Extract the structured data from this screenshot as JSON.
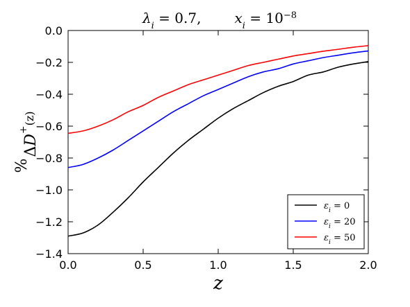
{
  "chart_data": {
    "type": "line",
    "title": "λ_i = 0.7,      x_i = 10^−8",
    "title_parts": {
      "lambda": "λ",
      "lambda_sub": "i",
      "lambda_value": " = 0.7,",
      "x": "x",
      "x_sub": "i",
      "x_value": " = 10",
      "x_exp": "−8"
    },
    "xlabel": "z",
    "ylabel": "%ΔD₊(z)",
    "ylabel_parts": {
      "prefix": "%",
      "delta": "Δ",
      "D": "D",
      "sub": "+",
      "arg": "(z)"
    },
    "xlim": [
      0.0,
      2.0
    ],
    "ylim": [
      -1.4,
      0.0
    ],
    "xticks": [
      "0.0",
      "0.5",
      "1.0",
      "1.5",
      "2.0"
    ],
    "yticks": [
      "0.0",
      "−0.2",
      "−0.4",
      "−0.6",
      "−0.8",
      "−1.0",
      "−1.2",
      "−1.4"
    ],
    "legend_position": "lower-right",
    "grid": false,
    "x": [
      0.0,
      0.1,
      0.2,
      0.3,
      0.4,
      0.5,
      0.6,
      0.7,
      0.8,
      0.9,
      1.0,
      1.1,
      1.2,
      1.3,
      1.4,
      1.5,
      1.6,
      1.7,
      1.8,
      1.9,
      2.0
    ],
    "series": [
      {
        "name": "ε_i = 0",
        "label_var": "ε",
        "label_sub": "i",
        "label_value": " = 0",
        "color": "#000000",
        "values": [
          -1.29,
          -1.27,
          -1.22,
          -1.14,
          -1.05,
          -0.95,
          -0.86,
          -0.77,
          -0.69,
          -0.62,
          -0.55,
          -0.49,
          -0.44,
          -0.39,
          -0.35,
          -0.32,
          -0.28,
          -0.26,
          -0.23,
          -0.21,
          -0.195
        ]
      },
      {
        "name": "ε_i = 20",
        "label_var": "ε",
        "label_sub": "i",
        "label_value": " = 20",
        "color": "#0000ff",
        "values": [
          -0.86,
          -0.84,
          -0.8,
          -0.75,
          -0.69,
          -0.63,
          -0.57,
          -0.51,
          -0.46,
          -0.41,
          -0.37,
          -0.33,
          -0.29,
          -0.26,
          -0.24,
          -0.21,
          -0.19,
          -0.17,
          -0.155,
          -0.14,
          -0.128
        ]
      },
      {
        "name": "ε_i = 50",
        "label_var": "ε",
        "label_sub": "i",
        "label_value": " = 50",
        "color": "#ff0000",
        "values": [
          -0.645,
          -0.63,
          -0.6,
          -0.56,
          -0.51,
          -0.47,
          -0.42,
          -0.38,
          -0.34,
          -0.31,
          -0.28,
          -0.25,
          -0.22,
          -0.2,
          -0.18,
          -0.16,
          -0.145,
          -0.13,
          -0.118,
          -0.105,
          -0.095
        ]
      }
    ]
  }
}
